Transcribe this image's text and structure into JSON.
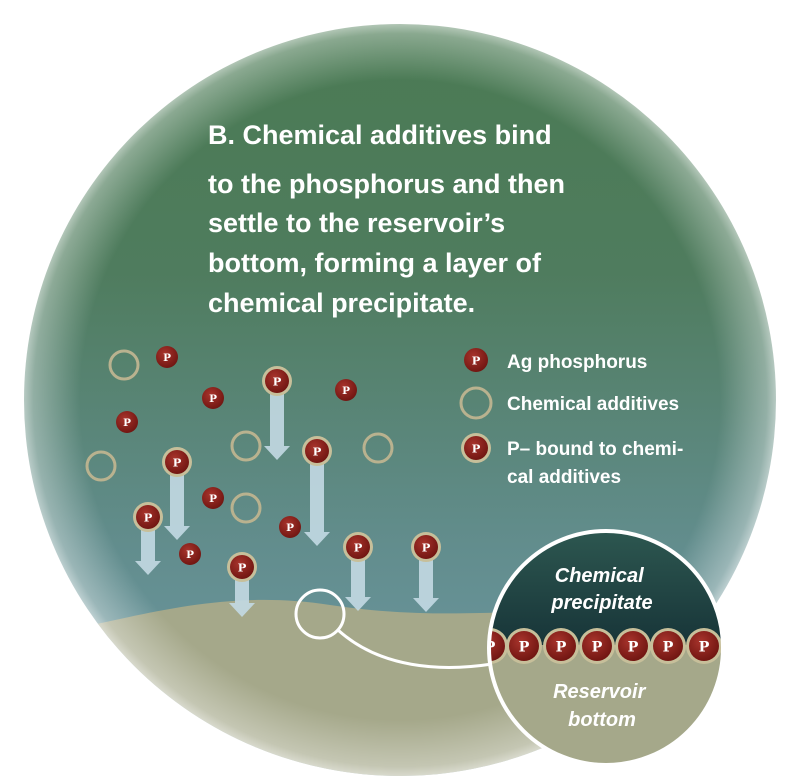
{
  "title": {
    "lines": [
      "B. Chemical additives bind",
      "to the  phosphorus and then",
      "settle to the reservoir’s",
      "bottom, forming a layer of",
      "chemical precipitate."
    ]
  },
  "legend": {
    "items": [
      {
        "icon": "ag-phosphorus-icon",
        "lines": [
          "Ag phosphorus"
        ]
      },
      {
        "icon": "chemical-additive-icon",
        "lines": [
          "Chemical additives"
        ]
      },
      {
        "icon": "bound-phosphorus-icon",
        "lines": [
          "P– bound to chemi-",
          "cal additives"
        ]
      }
    ]
  },
  "particle_letter": "P",
  "inset": {
    "top_label": [
      "Chemical",
      "precipitate"
    ],
    "bottom_label": [
      "Reservoir",
      "bottom"
    ]
  },
  "colors": {
    "water_top": "#4e7c56",
    "water_bottom": "#6c97a3",
    "sediment": "#a5a88a",
    "phosphorus": "#8a1f1a",
    "additive_ring": "#b9b28f",
    "arrow": "#c2d8e2",
    "inset_dark": "#1e3a3c"
  }
}
